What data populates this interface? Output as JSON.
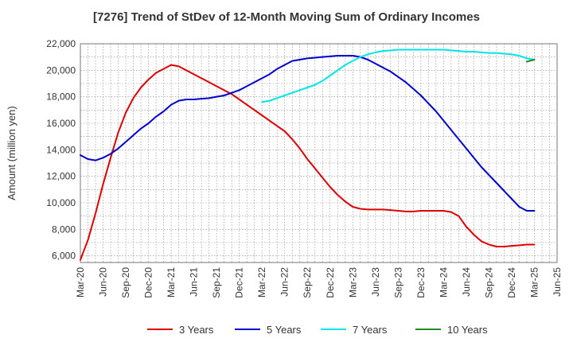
{
  "chart_data": {
    "type": "line",
    "title": "[7276]  Trend of StDev of 12-Month Moving Sum of Ordinary Incomes",
    "ylabel": "Amount (million yen)",
    "xlabel": "",
    "ylim": [
      5500,
      22000
    ],
    "y_ticks": [
      6000,
      8000,
      10000,
      12000,
      14000,
      16000,
      18000,
      20000,
      22000
    ],
    "y_tick_labels": [
      "6,000",
      "8,000",
      "10,000",
      "12,000",
      "14,000",
      "16,000",
      "18,000",
      "20,000",
      "22,000"
    ],
    "x_range": [
      "2020-03",
      "2025-06"
    ],
    "x_tick_labels": [
      "Mar-20",
      "Jun-20",
      "Sep-20",
      "Dec-20",
      "Mar-21",
      "Jun-21",
      "Sep-21",
      "Dec-21",
      "Mar-22",
      "Jun-22",
      "Sep-22",
      "Dec-22",
      "Mar-23",
      "Jun-23",
      "Sep-23",
      "Dec-23",
      "Mar-24",
      "Jun-24",
      "Sep-24",
      "Dec-24",
      "Mar-25",
      "Jun-25"
    ],
    "grid": true,
    "legend_position": "bottom",
    "series": [
      {
        "name": "3 Years",
        "color": "#dd0000",
        "points": [
          [
            "2020-03",
            5700
          ],
          [
            "2020-04",
            7200
          ],
          [
            "2020-05",
            9200
          ],
          [
            "2020-06",
            11400
          ],
          [
            "2020-07",
            13400
          ],
          [
            "2020-08",
            15300
          ],
          [
            "2020-09",
            16800
          ],
          [
            "2020-10",
            17900
          ],
          [
            "2020-11",
            18700
          ],
          [
            "2020-12",
            19300
          ],
          [
            "2021-01",
            19800
          ],
          [
            "2021-02",
            20100
          ],
          [
            "2021-03",
            20400
          ],
          [
            "2021-04",
            20300
          ],
          [
            "2021-05",
            20000
          ],
          [
            "2021-06",
            19700
          ],
          [
            "2021-07",
            19400
          ],
          [
            "2021-08",
            19100
          ],
          [
            "2021-09",
            18800
          ],
          [
            "2021-10",
            18500
          ],
          [
            "2021-11",
            18200
          ],
          [
            "2021-12",
            17800
          ],
          [
            "2022-01",
            17400
          ],
          [
            "2022-02",
            17000
          ],
          [
            "2022-03",
            16600
          ],
          [
            "2022-04",
            16200
          ],
          [
            "2022-05",
            15800
          ],
          [
            "2022-06",
            15400
          ],
          [
            "2022-07",
            14800
          ],
          [
            "2022-08",
            14100
          ],
          [
            "2022-09",
            13300
          ],
          [
            "2022-10",
            12600
          ],
          [
            "2022-11",
            11900
          ],
          [
            "2022-12",
            11200
          ],
          [
            "2023-01",
            10600
          ],
          [
            "2023-02",
            10100
          ],
          [
            "2023-03",
            9700
          ],
          [
            "2023-04",
            9550
          ],
          [
            "2023-05",
            9500
          ],
          [
            "2023-06",
            9500
          ],
          [
            "2023-07",
            9500
          ],
          [
            "2023-08",
            9450
          ],
          [
            "2023-09",
            9400
          ],
          [
            "2023-10",
            9350
          ],
          [
            "2023-11",
            9350
          ],
          [
            "2023-12",
            9400
          ],
          [
            "2024-01",
            9400
          ],
          [
            "2024-02",
            9400
          ],
          [
            "2024-03",
            9400
          ],
          [
            "2024-04",
            9300
          ],
          [
            "2024-05",
            9000
          ],
          [
            "2024-06",
            8200
          ],
          [
            "2024-07",
            7600
          ],
          [
            "2024-08",
            7100
          ],
          [
            "2024-09",
            6850
          ],
          [
            "2024-10",
            6700
          ],
          [
            "2024-11",
            6700
          ],
          [
            "2024-12",
            6750
          ],
          [
            "2025-01",
            6800
          ],
          [
            "2025-02",
            6850
          ],
          [
            "2025-03",
            6850
          ]
        ]
      },
      {
        "name": "5 Years",
        "color": "#0000cc",
        "points": [
          [
            "2020-03",
            13600
          ],
          [
            "2020-04",
            13300
          ],
          [
            "2020-05",
            13200
          ],
          [
            "2020-06",
            13400
          ],
          [
            "2020-07",
            13700
          ],
          [
            "2020-08",
            14100
          ],
          [
            "2020-09",
            14600
          ],
          [
            "2020-10",
            15100
          ],
          [
            "2020-11",
            15600
          ],
          [
            "2020-12",
            16000
          ],
          [
            "2021-01",
            16500
          ],
          [
            "2021-02",
            16900
          ],
          [
            "2021-03",
            17400
          ],
          [
            "2021-04",
            17700
          ],
          [
            "2021-05",
            17800
          ],
          [
            "2021-06",
            17800
          ],
          [
            "2021-07",
            17850
          ],
          [
            "2021-08",
            17900
          ],
          [
            "2021-09",
            18000
          ],
          [
            "2021-10",
            18100
          ],
          [
            "2021-11",
            18300
          ],
          [
            "2021-12",
            18500
          ],
          [
            "2022-01",
            18800
          ],
          [
            "2022-02",
            19100
          ],
          [
            "2022-03",
            19400
          ],
          [
            "2022-04",
            19700
          ],
          [
            "2022-05",
            20100
          ],
          [
            "2022-06",
            20400
          ],
          [
            "2022-07",
            20700
          ],
          [
            "2022-08",
            20800
          ],
          [
            "2022-09",
            20900
          ],
          [
            "2022-10",
            20950
          ],
          [
            "2022-11",
            21000
          ],
          [
            "2022-12",
            21050
          ],
          [
            "2023-01",
            21100
          ],
          [
            "2023-02",
            21100
          ],
          [
            "2023-03",
            21100
          ],
          [
            "2023-04",
            21000
          ],
          [
            "2023-05",
            20800
          ],
          [
            "2023-06",
            20500
          ],
          [
            "2023-07",
            20200
          ],
          [
            "2023-08",
            19900
          ],
          [
            "2023-09",
            19500
          ],
          [
            "2023-10",
            19100
          ],
          [
            "2023-11",
            18600
          ],
          [
            "2023-12",
            18100
          ],
          [
            "2024-01",
            17500
          ],
          [
            "2024-02",
            16900
          ],
          [
            "2024-03",
            16200
          ],
          [
            "2024-04",
            15500
          ],
          [
            "2024-05",
            14800
          ],
          [
            "2024-06",
            14100
          ],
          [
            "2024-07",
            13400
          ],
          [
            "2024-08",
            12700
          ],
          [
            "2024-09",
            12100
          ],
          [
            "2024-10",
            11500
          ],
          [
            "2024-11",
            10900
          ],
          [
            "2024-12",
            10300
          ],
          [
            "2025-01",
            9700
          ],
          [
            "2025-02",
            9400
          ],
          [
            "2025-03",
            9400
          ]
        ]
      },
      {
        "name": "7 Years",
        "color": "#00e5e5",
        "points": [
          [
            "2022-03",
            17600
          ],
          [
            "2022-04",
            17700
          ],
          [
            "2022-05",
            17900
          ],
          [
            "2022-06",
            18100
          ],
          [
            "2022-07",
            18300
          ],
          [
            "2022-08",
            18500
          ],
          [
            "2022-09",
            18700
          ],
          [
            "2022-10",
            18900
          ],
          [
            "2022-11",
            19200
          ],
          [
            "2022-12",
            19600
          ],
          [
            "2023-01",
            20000
          ],
          [
            "2023-02",
            20400
          ],
          [
            "2023-03",
            20700
          ],
          [
            "2023-04",
            21000
          ],
          [
            "2023-05",
            21200
          ],
          [
            "2023-06",
            21350
          ],
          [
            "2023-07",
            21450
          ],
          [
            "2023-08",
            21500
          ],
          [
            "2023-09",
            21550
          ],
          [
            "2023-10",
            21550
          ],
          [
            "2023-11",
            21550
          ],
          [
            "2023-12",
            21550
          ],
          [
            "2024-01",
            21550
          ],
          [
            "2024-02",
            21550
          ],
          [
            "2024-03",
            21550
          ],
          [
            "2024-04",
            21500
          ],
          [
            "2024-05",
            21450
          ],
          [
            "2024-06",
            21400
          ],
          [
            "2024-07",
            21400
          ],
          [
            "2024-08",
            21350
          ],
          [
            "2024-09",
            21300
          ],
          [
            "2024-10",
            21300
          ],
          [
            "2024-11",
            21250
          ],
          [
            "2024-12",
            21200
          ],
          [
            "2025-01",
            21100
          ],
          [
            "2025-02",
            20900
          ],
          [
            "2025-03",
            20800
          ]
        ]
      },
      {
        "name": "10 Years",
        "color": "#228b22",
        "points": [
          [
            "2025-02",
            20650
          ],
          [
            "2025-03",
            20800
          ]
        ]
      }
    ]
  }
}
